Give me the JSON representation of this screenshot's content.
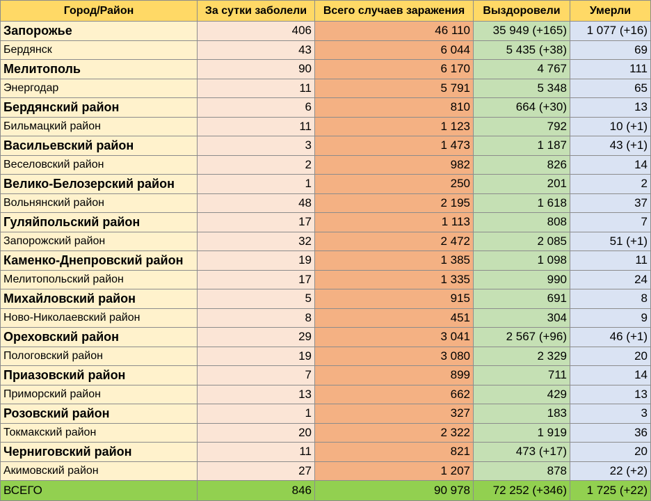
{
  "table": {
    "headers": [
      "Город/Район",
      "За сутки заболели",
      "Всего случаев заражения",
      "Выздоровели",
      "Умерли"
    ],
    "rows": [
      {
        "city": "Запорожье",
        "daily": "406",
        "total": "46 110",
        "recovered": "35 949 (+165)",
        "deaths": "1 077 (+16)",
        "bold": true
      },
      {
        "city": "Бердянск",
        "daily": "43",
        "total": "6 044",
        "recovered": "5 435 (+38)",
        "deaths": "69",
        "bold": false
      },
      {
        "city": "Мелитополь",
        "daily": "90",
        "total": "6 170",
        "recovered": "4 767",
        "deaths": "111",
        "bold": true
      },
      {
        "city": "Энергодар",
        "daily": "11",
        "total": "5 791",
        "recovered": "5 348",
        "deaths": "65",
        "bold": false
      },
      {
        "city": "Бердянский район",
        "daily": "6",
        "total": "810",
        "recovered": "664 (+30)",
        "deaths": "13",
        "bold": true
      },
      {
        "city": "Бильмацкий район",
        "daily": "11",
        "total": "1 123",
        "recovered": "792",
        "deaths": "10  (+1)",
        "bold": false
      },
      {
        "city": "Васильевский район",
        "daily": "3",
        "total": "1 473",
        "recovered": "1 187",
        "deaths": "43  (+1)",
        "bold": true
      },
      {
        "city": "Веселовский район",
        "daily": "2",
        "total": "982",
        "recovered": "826",
        "deaths": "14",
        "bold": false
      },
      {
        "city": "Велико-Белозерский район",
        "daily": "1",
        "total": "250",
        "recovered": "201",
        "deaths": "2",
        "bold": true
      },
      {
        "city": "Вольнянский район",
        "daily": "48",
        "total": "2 195",
        "recovered": "1 618",
        "deaths": "37",
        "bold": false
      },
      {
        "city": "Гуляйпольский район",
        "daily": "17",
        "total": "1 113",
        "recovered": "808",
        "deaths": "7",
        "bold": true
      },
      {
        "city": "Запорожский район",
        "daily": "32",
        "total": "2 472",
        "recovered": "2 085",
        "deaths": "51  (+1)",
        "bold": false
      },
      {
        "city": "Каменко-Днепровский район",
        "daily": "19",
        "total": "1 385",
        "recovered": "1 098",
        "deaths": "11",
        "bold": true
      },
      {
        "city": "Мелитопольский район",
        "daily": "17",
        "total": "1 335",
        "recovered": "990",
        "deaths": "24",
        "bold": false
      },
      {
        "city": "Михайловский район",
        "daily": "5",
        "total": "915",
        "recovered": "691",
        "deaths": "8",
        "bold": true
      },
      {
        "city": "Ново-Николаевский район",
        "daily": "8",
        "total": "451",
        "recovered": "304",
        "deaths": "9",
        "bold": false
      },
      {
        "city": "Ореховский район",
        "daily": "29",
        "total": "3 041",
        "recovered": "2 567 (+96)",
        "deaths": "46  (+1)",
        "bold": true
      },
      {
        "city": "Пологовский район",
        "daily": "19",
        "total": "3 080",
        "recovered": "2 329",
        "deaths": "20",
        "bold": false
      },
      {
        "city": "Приазовский район",
        "daily": "7",
        "total": "899",
        "recovered": "711",
        "deaths": "14",
        "bold": true
      },
      {
        "city": "Приморский район",
        "daily": "13",
        "total": "662",
        "recovered": "429",
        "deaths": "13",
        "bold": false
      },
      {
        "city": "Розовский район",
        "daily": "1",
        "total": "327",
        "recovered": "183",
        "deaths": "3",
        "bold": true
      },
      {
        "city": "Токмакский район",
        "daily": "20",
        "total": "2 322",
        "recovered": "1 919",
        "deaths": "36",
        "bold": false
      },
      {
        "city": "Черниговский район",
        "daily": "11",
        "total": "821",
        "recovered": "473 (+17)",
        "deaths": "20",
        "bold": true
      },
      {
        "city": "Акимовский район",
        "daily": "27",
        "total": "1 207",
        "recovered": "878",
        "deaths": "22  (+2)",
        "bold": false
      }
    ],
    "summary": {
      "city": "ВСЕГО",
      "daily": "846",
      "total": "90 978",
      "recovered": "72 252 (+346)",
      "deaths": "1 725 (+22)"
    }
  },
  "colors": {
    "header": "#ffd966",
    "city": "#fff2cc",
    "daily": "#fbe5d6",
    "total": "#f4b183",
    "recovered": "#c5e0b4",
    "deaths": "#dae3f3",
    "summary": "#92d050"
  }
}
